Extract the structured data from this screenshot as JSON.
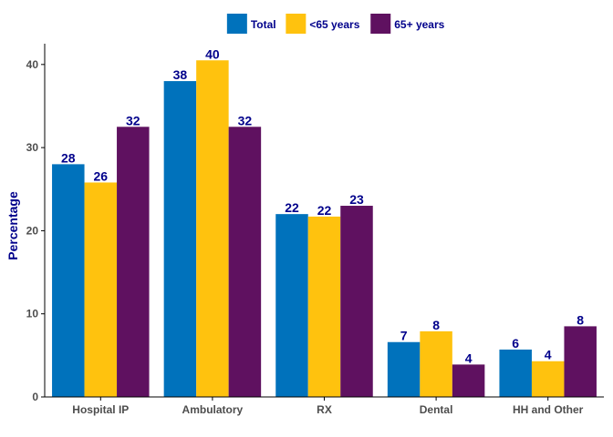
{
  "chart_data": {
    "type": "bar",
    "categories": [
      "Hospital IP",
      "Ambulatory",
      "RX",
      "Dental",
      "HH and Other"
    ],
    "series": [
      {
        "name": "Total",
        "color": "#0072bc",
        "values": [
          28,
          38,
          22,
          6.6,
          5.7
        ],
        "labels": [
          "28",
          "38",
          "22",
          "7",
          "6"
        ]
      },
      {
        "name": "<65 years",
        "color": "#ffc20e",
        "values": [
          25.8,
          40.5,
          21.7,
          7.9,
          4.3
        ],
        "labels": [
          "26",
          "40",
          "22",
          "8",
          "4"
        ]
      },
      {
        "name": "65+ years",
        "color": "#5f1160",
        "values": [
          32.5,
          32.5,
          23,
          3.9,
          8.5
        ],
        "labels": [
          "32",
          "32",
          "23",
          "4",
          "8"
        ]
      }
    ],
    "title": "",
    "xlabel": "",
    "ylabel": "Percentage",
    "ylim": [
      0,
      42.5
    ],
    "yticks": [
      0,
      10,
      20,
      30,
      40
    ],
    "grid": false,
    "legend_position": "top"
  }
}
